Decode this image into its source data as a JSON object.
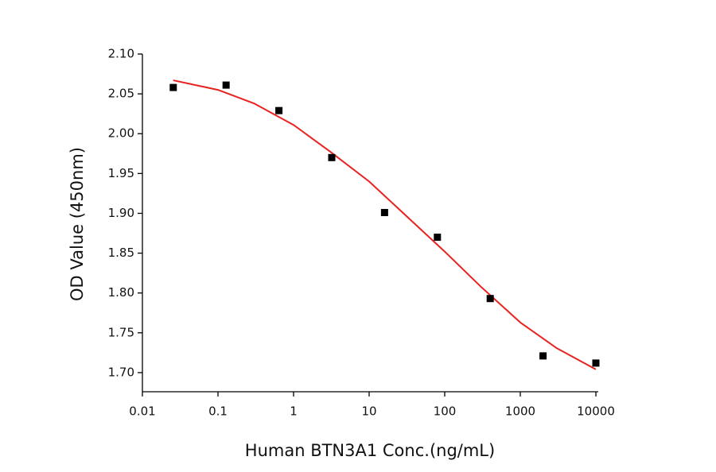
{
  "chart_data": {
    "type": "scatter",
    "x_label": "Human BTN3A1 Conc.(ng/mL)",
    "y_label": "OD Value (450nm)",
    "xscale": "log",
    "xlim": [
      0.01,
      10000
    ],
    "xticks": [
      0.01,
      0.1,
      1,
      10,
      100,
      1000,
      10000
    ],
    "ylim": [
      1.676,
      2.1
    ],
    "yticks": [
      {
        "value": 1.7,
        "label": "1.70"
      },
      1.75,
      {
        "value": 1.8,
        "label": "1.80"
      },
      1.85,
      {
        "value": 1.9,
        "label": "1.90"
      },
      1.95,
      {
        "value": 2.0,
        "label": "2.00"
      },
      2.05,
      {
        "value": 2.1,
        "label": "2.10"
      }
    ],
    "series": [
      {
        "type": "scatter",
        "color": "#000000",
        "x": [
          0.0256,
          0.128,
          0.64,
          3.2,
          16,
          80,
          400,
          2000,
          10000
        ],
        "values": [
          2.058,
          2.061,
          2.029,
          1.97,
          1.901,
          1.87,
          1.793,
          1.721,
          1.712
        ]
      },
      {
        "type": "line",
        "color": "#e8231f",
        "x": [
          0.0256,
          0.1,
          0.3,
          1,
          3,
          10,
          30,
          100,
          300,
          1000,
          3000,
          10000
        ],
        "values": [
          2.067,
          2.055,
          2.038,
          2.011,
          1.978,
          1.94,
          1.898,
          1.852,
          1.808,
          1.763,
          1.731,
          1.704
        ]
      }
    ]
  }
}
